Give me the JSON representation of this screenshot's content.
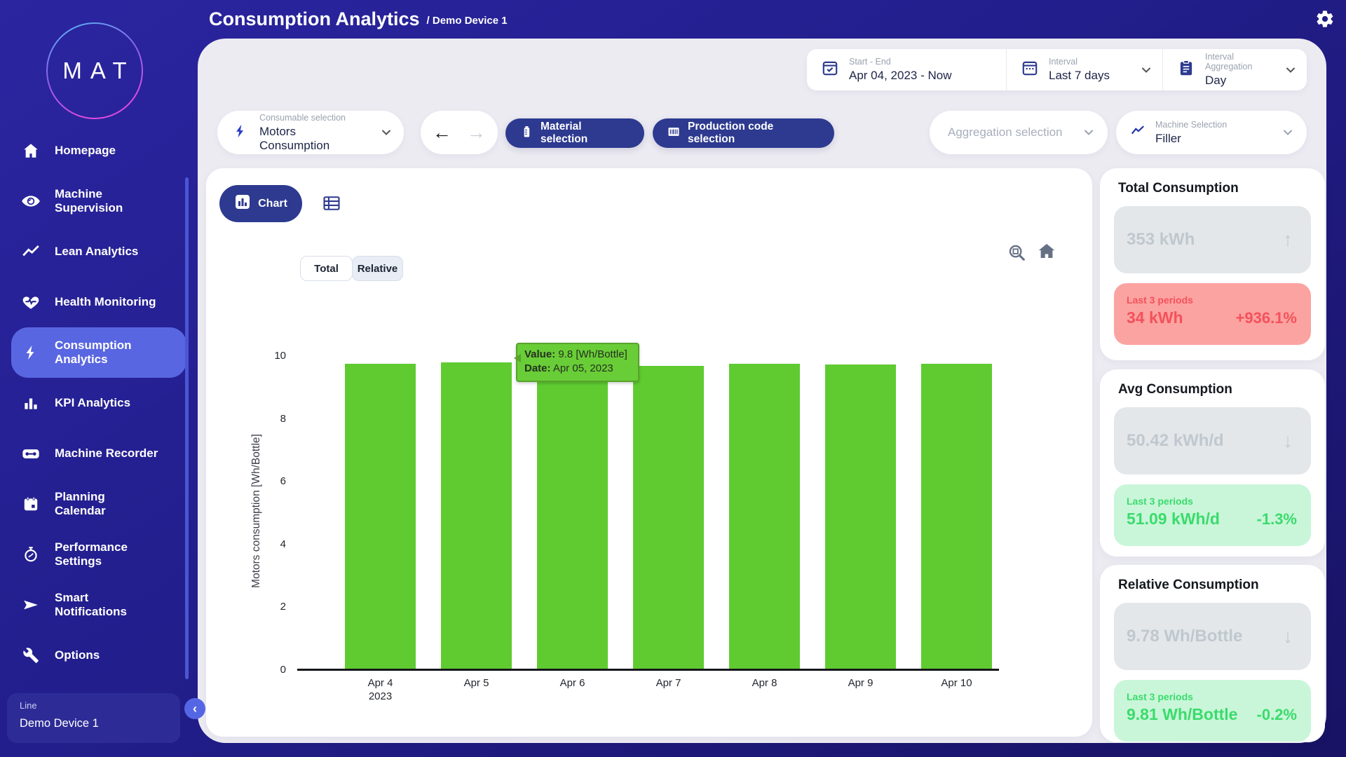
{
  "colors": {
    "sidebar_bg": "#221E8C",
    "accent_indigo": "#2D3A8F",
    "active_item_bg": "#5966E1",
    "panel_bg": "#ECEBF2",
    "bar_green": "#5FCB31",
    "negative_bg": "#FBA3A0",
    "negative_text": "#F4515C",
    "positive_bg": "#C9F6D9",
    "positive_text": "#3BDB6C",
    "muted_box_bg": "#E4E7EA",
    "muted_text": "#BFC8CE"
  },
  "header": {
    "title": "Consumption Analytics",
    "breadcrumb": "/ Demo Device 1"
  },
  "sidebar": {
    "logo_text": "MAT",
    "items": [
      {
        "label": "Homepage",
        "icon": "home-icon",
        "active": false
      },
      {
        "label": "Machine Supervision",
        "icon": "eye-icon",
        "active": false
      },
      {
        "label": "Lean Analytics",
        "icon": "trend-line-icon",
        "active": false
      },
      {
        "label": "Health Monitoring",
        "icon": "heart-pulse-icon",
        "active": false
      },
      {
        "label": "Consumption Analytics",
        "icon": "bolt-icon",
        "active": true
      },
      {
        "label": "KPI Analytics",
        "icon": "bar-chart-icon",
        "active": false
      },
      {
        "label": "Machine Recorder",
        "icon": "cassette-icon",
        "active": false
      },
      {
        "label": "Planning Calendar",
        "icon": "calendar-icon",
        "active": false
      },
      {
        "label": "Performance Settings",
        "icon": "stopwatch-icon",
        "active": false
      },
      {
        "label": "Smart Notifications",
        "icon": "send-icon",
        "active": false
      },
      {
        "label": "Options",
        "icon": "wrench-icon",
        "active": false
      }
    ],
    "device_card": {
      "label": "Line",
      "value": "Demo Device 1"
    },
    "collapse_glyph": "‹"
  },
  "filters": {
    "start_end": {
      "label": "Start - End",
      "value": "Apr 04, 2023 - Now",
      "icon": "calendar-check-icon"
    },
    "interval": {
      "label": "Interval",
      "value": "Last 7 days",
      "icon": "calendar-icon"
    },
    "interval_aggregation": {
      "label": "Interval Aggregation",
      "value": "Day",
      "icon": "clipboard-icon"
    }
  },
  "toolbar": {
    "consumable": {
      "label": "Consumable selection",
      "value": "Motors Consumption",
      "icon": "bolt-icon"
    },
    "back_arrow": "←",
    "forward_arrow": "→",
    "material_button": "Material selection",
    "production_button": "Production code selection",
    "aggregation_placeholder": "Aggregation selection",
    "machine": {
      "label": "Machine Selection",
      "value": "Filler",
      "icon": "trend-line-icon"
    }
  },
  "chart_card": {
    "chart_tab": "Chart",
    "view_toggle": {
      "total": "Total",
      "relative": "Relative",
      "selected": "Relative"
    },
    "tooltip": {
      "value_label": "Value:",
      "value_text": "9.8 [Wh/Bottle]",
      "date_label": "Date:",
      "date_text": "Apr 05, 2023"
    }
  },
  "chart_data": {
    "type": "bar",
    "title": "",
    "ylabel": "Motors consumption [Wh/Bottle]",
    "xlabel": "",
    "ylim": [
      0,
      10
    ],
    "yticks": [
      0,
      2,
      4,
      6,
      8,
      10
    ],
    "grid": false,
    "legend": false,
    "categories": [
      "Apr 4",
      "Apr 5",
      "Apr 6",
      "Apr 7",
      "Apr 8",
      "Apr 9",
      "Apr 10"
    ],
    "first_category_year": "2023",
    "values": [
      9.75,
      9.8,
      9.78,
      9.68,
      9.76,
      9.73,
      9.75
    ],
    "bar_color": "#5FCB31"
  },
  "stats": [
    {
      "title": "Total Consumption",
      "main_value": "353 kWh",
      "trend_arrow": "↑",
      "period_label": "Last 3 periods",
      "period_value": "34 kWh",
      "period_change": "+936.1%",
      "tone": "negative"
    },
    {
      "title": "Avg Consumption",
      "main_value": "50.42 kWh/d",
      "trend_arrow": "↓",
      "period_label": "Last 3 periods",
      "period_value": "51.09 kWh/d",
      "period_change": "-1.3%",
      "tone": "positive"
    },
    {
      "title": "Relative Consumption",
      "main_value": "9.78 Wh/Bottle",
      "trend_arrow": "↓",
      "period_label": "Last 3 periods",
      "period_value": "9.81 Wh/Bottle",
      "period_change": "-0.2%",
      "tone": "positive"
    }
  ]
}
